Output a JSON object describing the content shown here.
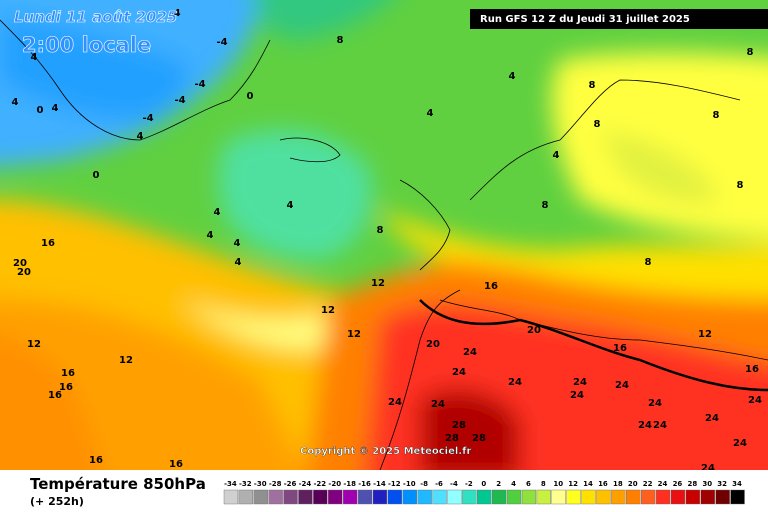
{
  "header": {
    "date": "Lundi 11 août 2025",
    "time": "2:00 locale",
    "run": "Run GFS 12 Z du Jeudi 31 juillet 2025"
  },
  "copyright": "Copyright © 2025 Meteociel.fr",
  "footer": {
    "title": "Température 850hPa",
    "lead": "(+ 252h)"
  },
  "contour_labels": [
    -4,
    -4,
    -4,
    -4,
    -4,
    4,
    4,
    4,
    0,
    0,
    4,
    0,
    8,
    4,
    4,
    4,
    4,
    4,
    4,
    4,
    8,
    12,
    12,
    12,
    12,
    12,
    16,
    20,
    20,
    16,
    16,
    16,
    16,
    16,
    16,
    20,
    20,
    24,
    24,
    24,
    24,
    24,
    24,
    24,
    24,
    28,
    28,
    28,
    16,
    12,
    16,
    24,
    24,
    24,
    24,
    24,
    24,
    24,
    8,
    8,
    8,
    8,
    4,
    8,
    8,
    8
  ],
  "scale": {
    "ticks": [
      -34,
      -32,
      -30,
      -28,
      -26,
      -24,
      -22,
      -20,
      -18,
      -16,
      -14,
      -12,
      -10,
      -8,
      -6,
      -4,
      -2,
      0,
      2,
      4,
      6,
      8,
      10,
      12,
      14,
      16,
      18,
      20,
      22,
      24,
      26,
      28,
      30,
      32,
      34
    ],
    "colors": [
      "#d0d0d0",
      "#b0b0b0",
      "#909090",
      "#a070a0",
      "#804880",
      "#602060",
      "#580058",
      "#800080",
      "#a000b0",
      "#5050b0",
      "#2020c0",
      "#0050f0",
      "#0090ff",
      "#20b8ff",
      "#50e0ff",
      "#90ffff",
      "#30e0c0",
      "#00c890",
      "#20b850",
      "#50d040",
      "#90e040",
      "#c8f040",
      "#ffff90",
      "#ffff20",
      "#ffe000",
      "#ffc000",
      "#ffa000",
      "#ff8000",
      "#ff6020",
      "#ff3020",
      "#e81010",
      "#c80000",
      "#a00000",
      "#700000",
      "#000000"
    ]
  }
}
